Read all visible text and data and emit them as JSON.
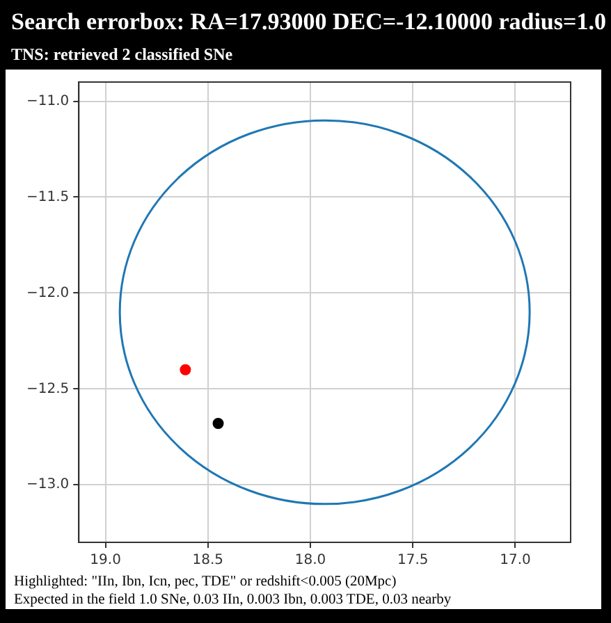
{
  "chart_data": {
    "type": "scatter",
    "title": "Search errorbox: RA=17.93000 DEC=-12.10000 radius=1.0",
    "subtitle": "TNS: retrieved 2 classified SNe",
    "xlim": [
      19.13,
      16.73
    ],
    "ylim": [
      -13.3,
      -10.9
    ],
    "xticks": [
      {
        "value": 19,
        "label": "19.0"
      },
      {
        "value": 18.5,
        "label": "18.5"
      },
      {
        "value": 18,
        "label": "18.0"
      },
      {
        "value": 17.5,
        "label": "17.5"
      },
      {
        "value": 17,
        "label": "17.0"
      }
    ],
    "yticks": [
      {
        "value": -13,
        "label": "−13.0"
      },
      {
        "value": -12.5,
        "label": "−12.5"
      },
      {
        "value": -12,
        "label": "−12.0"
      },
      {
        "value": -11.5,
        "label": "−11.5"
      },
      {
        "value": -11,
        "label": "−11.0"
      }
    ],
    "grid": true,
    "legend": false,
    "marker": "circle",
    "series": [
      {
        "color": "#ff0000",
        "x": [
          18.61
        ],
        "values": [
          -12.4
        ]
      },
      {
        "color": "#000000",
        "x": [
          18.45
        ],
        "values": [
          -12.68
        ]
      }
    ],
    "annotations": [
      "Highlighted: \"IIn, Ibn, Icn, pec, TDE\" or redshift<0.005 (20Mpc)",
      "Expected in the field 1.0 SNe, 0.03 IIn, 0.003 Ibn, 0.003 TDE, 0.03 nearby"
    ]
  }
}
